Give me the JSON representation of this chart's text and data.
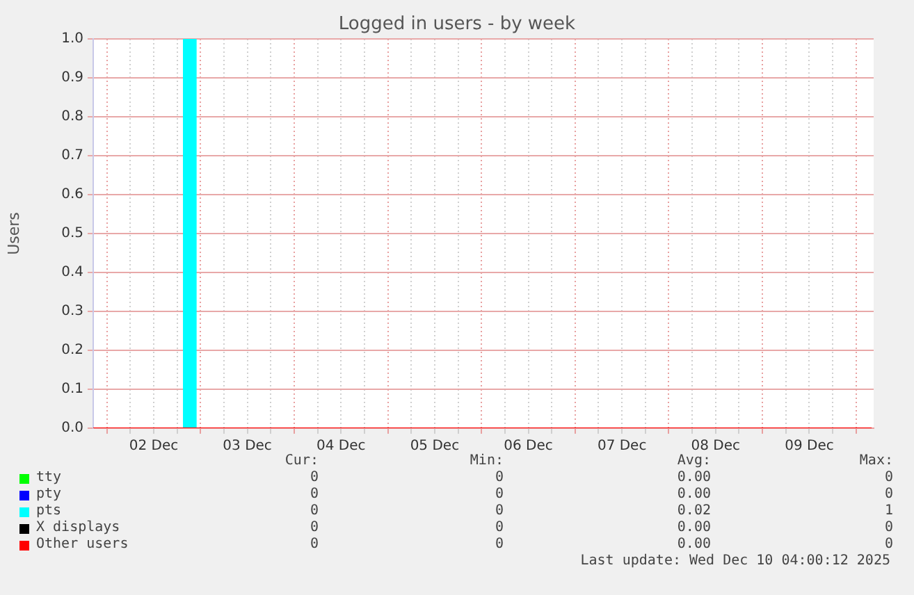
{
  "chart_data": {
    "type": "area",
    "title": "Logged in users - by week",
    "ylabel": "Users",
    "xlim": [
      "2025-12-01T20:30",
      "2025-12-10T04:30"
    ],
    "xticks": [
      {
        "value": "2025-12-02T00:00",
        "label": null
      },
      {
        "value": "2025-12-02T06:00",
        "label": null
      },
      {
        "value": "2025-12-02T12:00",
        "label": "02 Dec"
      },
      {
        "value": "2025-12-02T18:00",
        "label": null
      },
      {
        "value": "2025-12-03T00:00",
        "label": null
      },
      {
        "value": "2025-12-03T06:00",
        "label": null
      },
      {
        "value": "2025-12-03T12:00",
        "label": "03 Dec"
      },
      {
        "value": "2025-12-03T18:00",
        "label": null
      },
      {
        "value": "2025-12-04T00:00",
        "label": null
      },
      {
        "value": "2025-12-04T06:00",
        "label": null
      },
      {
        "value": "2025-12-04T12:00",
        "label": "04 Dec"
      },
      {
        "value": "2025-12-04T18:00",
        "label": null
      },
      {
        "value": "2025-12-05T00:00",
        "label": null
      },
      {
        "value": "2025-12-05T06:00",
        "label": null
      },
      {
        "value": "2025-12-05T12:00",
        "label": "05 Dec"
      },
      {
        "value": "2025-12-05T18:00",
        "label": null
      },
      {
        "value": "2025-12-06T00:00",
        "label": null
      },
      {
        "value": "2025-12-06T06:00",
        "label": null
      },
      {
        "value": "2025-12-06T12:00",
        "label": "06 Dec"
      },
      {
        "value": "2025-12-06T18:00",
        "label": null
      },
      {
        "value": "2025-12-07T00:00",
        "label": null
      },
      {
        "value": "2025-12-07T06:00",
        "label": null
      },
      {
        "value": "2025-12-07T12:00",
        "label": "07 Dec"
      },
      {
        "value": "2025-12-07T18:00",
        "label": null
      },
      {
        "value": "2025-12-08T00:00",
        "label": null
      },
      {
        "value": "2025-12-08T06:00",
        "label": null
      },
      {
        "value": "2025-12-08T12:00",
        "label": "08 Dec"
      },
      {
        "value": "2025-12-08T18:00",
        "label": null
      },
      {
        "value": "2025-12-09T00:00",
        "label": null
      },
      {
        "value": "2025-12-09T06:00",
        "label": null
      },
      {
        "value": "2025-12-09T12:00",
        "label": "09 Dec"
      },
      {
        "value": "2025-12-09T18:00",
        "label": null
      },
      {
        "value": "2025-12-10T00:00",
        "label": null
      }
    ],
    "ylim": [
      0,
      1
    ],
    "yticks": [
      {
        "value": 0,
        "label": "0.0"
      },
      {
        "value": 0.1,
        "label": "0.1"
      },
      {
        "value": 0.2,
        "label": "0.2"
      },
      {
        "value": 0.3,
        "label": "0.3"
      },
      {
        "value": 0.4,
        "label": "0.4"
      },
      {
        "value": 0.5,
        "label": "0.5"
      },
      {
        "value": 0.6,
        "label": "0.6"
      },
      {
        "value": 0.7,
        "label": "0.7"
      },
      {
        "value": 0.8,
        "label": "0.8"
      },
      {
        "value": 0.9,
        "label": "0.9"
      },
      {
        "value": 1,
        "label": "1.0"
      }
    ],
    "grid": true,
    "legend": "bottom",
    "series": [
      {
        "name": "tty",
        "color": "#00ff00",
        "type": "line"
      },
      {
        "name": "pty",
        "color": "#0000ff",
        "type": "line"
      },
      {
        "name": "pts",
        "color": "#00ffff",
        "x": [
          "2025-12-01T20:30",
          "2025-12-02T19:30",
          "2025-12-02T19:30",
          "2025-12-02T23:00",
          "2025-12-02T23:00",
          "2025-12-10T04:00"
        ],
        "values": [
          0,
          0,
          1,
          1,
          0,
          0
        ]
      },
      {
        "name": "X displays",
        "color": "#000000",
        "type": "line"
      },
      {
        "name": "Other users",
        "color": "#ff0000",
        "type": "line",
        "x": [
          "2025-12-01T20:30",
          "2025-12-10T04:00"
        ],
        "values": [
          0,
          0
        ]
      }
    ],
    "annotations": [
      "Cur:",
      "Min:",
      "Avg:",
      "Max:",
      "0",
      "0",
      "0.00",
      "0",
      "0",
      "0",
      "0.00",
      "0",
      "0",
      "0",
      "0.02",
      "1",
      "0",
      "0",
      "0.00",
      "0",
      "0",
      "0",
      "0.00",
      "0",
      "Last update: Wed Dec 10 04:00:12 2025"
    ]
  }
}
